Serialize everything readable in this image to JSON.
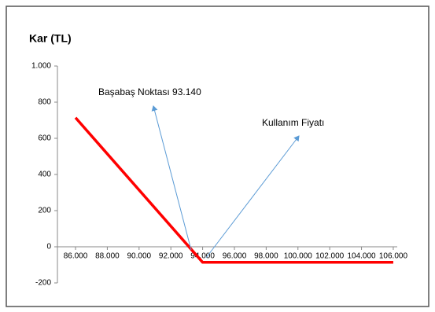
{
  "chart_data": {
    "type": "line",
    "title": "Kar (TL)",
    "annotations": [
      "Başabaş Noktası 93.140",
      "Kullanım Fiyatı"
    ],
    "series": [
      {
        "color": "#ff0000",
        "x": [
          86000,
          94000,
          106000
        ],
        "values": [
          714,
          -86,
          -86
        ]
      }
    ],
    "xlim": [
      84860,
      106250
    ],
    "xticks": [
      {
        "value": 86000,
        "label": "86.000"
      },
      {
        "value": 88000,
        "label": "88.000"
      },
      {
        "value": 90000,
        "label": "90.000"
      },
      {
        "value": 92000,
        "label": "92.000"
      },
      {
        "value": 94000,
        "label": "94.000"
      },
      {
        "value": 96000,
        "label": "96.000"
      },
      {
        "value": 98000,
        "label": "98.000"
      },
      {
        "value": 100000,
        "label": "100.000"
      },
      {
        "value": 102000,
        "label": "102.000"
      },
      {
        "value": 104000,
        "label": "104.000"
      },
      {
        "value": 106000,
        "label": "106.000"
      }
    ],
    "ylim": [
      -200,
      1000
    ],
    "yticks": [
      -200,
      0,
      200,
      400,
      600,
      800,
      {
        "value": 1000,
        "label": "1.000"
      }
    ]
  }
}
